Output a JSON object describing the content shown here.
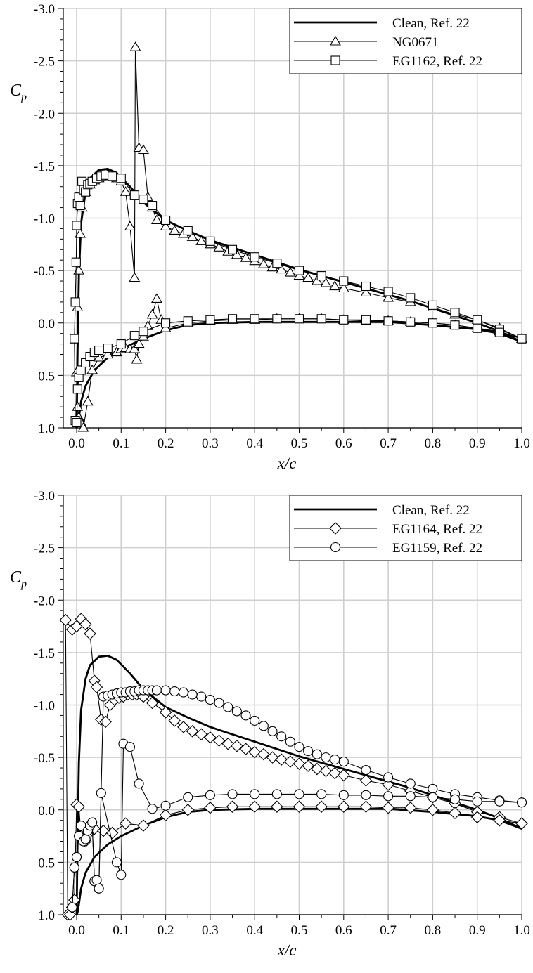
{
  "chart_data": [
    {
      "type": "line",
      "xlabel": "x/c",
      "ylabel": "C",
      "ylabel_sub": "p",
      "xlim": [
        -0.03,
        1.0
      ],
      "ylim": [
        1.0,
        -3.0
      ],
      "y_axis_inverted": true,
      "xticks": [
        "0.0",
        "0.1",
        "0.2",
        "0.3",
        "0.4",
        "0.5",
        "0.6",
        "0.7",
        "0.8",
        "0.9",
        "1.0"
      ],
      "xtick_values": [
        0.0,
        0.1,
        0.2,
        0.3,
        0.4,
        0.5,
        0.6,
        0.7,
        0.8,
        0.9,
        1.0
      ],
      "yticks": [
        "-3.0",
        "-2.5",
        "-2.0",
        "-1.5",
        "-1.0",
        "-0.5",
        "0.0",
        "0.5",
        "1.0"
      ],
      "ytick_values": [
        -3.0,
        -2.5,
        -2.0,
        -1.5,
        -1.0,
        -0.5,
        0.0,
        0.5,
        1.0
      ],
      "grid": true,
      "legend_position": "top-right",
      "series": [
        {
          "name": "Clean, Ref. 22",
          "marker": "none",
          "line": "thick",
          "x": [
            0.0,
            0.002,
            0.005,
            0.01,
            0.02,
            0.03,
            0.05,
            0.07,
            0.09,
            0.12,
            0.15,
            0.2,
            0.25,
            0.3,
            0.35,
            0.4,
            0.45,
            0.5,
            0.55,
            0.6,
            0.65,
            0.7,
            0.75,
            0.8,
            0.85,
            0.9,
            0.95,
            1.0,
            null,
            0.0,
            0.002,
            0.005,
            0.01,
            0.02,
            0.04,
            0.07,
            0.1,
            0.15,
            0.2,
            0.25,
            0.3,
            0.4,
            0.5,
            0.6,
            0.7,
            0.8,
            0.9,
            0.95,
            1.0
          ],
          "y": [
            1.0,
            0.3,
            -0.45,
            -0.95,
            -1.25,
            -1.38,
            -1.46,
            -1.47,
            -1.43,
            -1.3,
            -1.15,
            -0.98,
            -0.88,
            -0.79,
            -0.72,
            -0.65,
            -0.58,
            -0.51,
            -0.45,
            -0.39,
            -0.33,
            -0.27,
            -0.21,
            -0.14,
            -0.07,
            0.0,
            0.08,
            0.18,
            null,
            1.0,
            0.98,
            0.9,
            0.75,
            0.6,
            0.45,
            0.33,
            0.25,
            0.15,
            0.07,
            0.02,
            0.0,
            -0.01,
            -0.01,
            -0.01,
            -0.01,
            0.02,
            0.06,
            0.1,
            0.18
          ]
        },
        {
          "name": "NG0671",
          "marker": "triangle",
          "x": [
            0.0,
            0.002,
            0.005,
            0.008,
            0.012,
            0.02,
            0.03,
            0.04,
            0.05,
            0.06,
            0.07,
            0.08,
            0.09,
            0.1,
            0.11,
            0.12,
            0.13,
            0.132,
            0.14,
            0.15,
            0.16,
            0.17,
            0.18,
            0.2,
            0.22,
            0.24,
            0.26,
            0.28,
            0.3,
            0.32,
            0.34,
            0.36,
            0.38,
            0.4,
            0.42,
            0.44,
            0.46,
            0.48,
            0.5,
            0.52,
            0.54,
            0.56,
            0.58,
            0.6,
            0.65,
            0.7,
            0.75,
            0.8,
            0.85,
            0.9,
            0.95,
            1.0,
            null,
            0.0,
            0.002,
            0.005,
            0.01,
            0.015,
            0.025,
            0.035,
            0.05,
            0.07,
            0.09,
            0.1,
            0.11,
            0.12,
            0.13,
            0.135,
            0.14,
            0.15,
            0.16,
            0.17,
            0.18,
            0.19,
            0.2,
            0.25,
            0.3,
            0.35,
            0.4,
            0.45,
            0.5,
            0.55,
            0.6,
            0.65,
            0.7,
            0.75,
            0.8,
            0.85,
            0.9,
            0.95,
            1.0
          ],
          "y": [
            0.47,
            -0.15,
            -0.5,
            -0.85,
            -1.1,
            -1.25,
            -1.32,
            -1.36,
            -1.38,
            -1.4,
            -1.42,
            -1.4,
            -1.38,
            -1.35,
            -1.25,
            -0.92,
            -0.43,
            -2.63,
            -1.67,
            -1.65,
            -1.2,
            -1.1,
            -0.98,
            -0.92,
            -0.88,
            -0.85,
            -0.82,
            -0.78,
            -0.75,
            -0.72,
            -0.68,
            -0.65,
            -0.62,
            -0.59,
            -0.56,
            -0.53,
            -0.51,
            -0.48,
            -0.45,
            -0.43,
            -0.4,
            -0.38,
            -0.35,
            -0.33,
            -0.29,
            -0.24,
            -0.2,
            -0.15,
            -0.08,
            -0.03,
            0.05,
            0.15,
            null,
            0.47,
            0.8,
            0.9,
            0.95,
            1.0,
            0.75,
            0.45,
            0.33,
            0.3,
            0.28,
            0.25,
            0.24,
            0.25,
            0.25,
            0.35,
            0.2,
            0.13,
            0.03,
            -0.08,
            -0.23,
            -0.03,
            0.05,
            0.0,
            -0.02,
            -0.03,
            -0.03,
            -0.04,
            -0.04,
            -0.04,
            -0.03,
            -0.02,
            -0.02,
            -0.01,
            0.0,
            0.02,
            0.05,
            0.08,
            0.15
          ]
        },
        {
          "name": "EG1162, Ref. 22",
          "marker": "square",
          "x": [
            -0.005,
            -0.003,
            -0.001,
            0.0,
            0.002,
            0.005,
            0.008,
            0.012,
            0.016,
            0.02,
            0.025,
            0.03,
            0.035,
            0.045,
            0.055,
            0.065,
            0.08,
            0.1,
            0.13,
            0.15,
            0.17,
            0.2,
            0.25,
            0.3,
            0.35,
            0.4,
            0.45,
            0.5,
            0.55,
            0.6,
            0.65,
            0.7,
            0.75,
            0.8,
            0.85,
            0.9,
            0.95,
            1.0,
            null,
            -0.005,
            -0.003,
            0.0,
            0.002,
            0.005,
            0.01,
            0.02,
            0.03,
            0.04,
            0.05,
            0.07,
            0.1,
            0.13,
            0.15,
            0.2,
            0.25,
            0.3,
            0.35,
            0.4,
            0.45,
            0.5,
            0.55,
            0.6,
            0.65,
            0.7,
            0.75,
            0.8,
            0.85,
            0.9,
            0.95,
            1.0
          ],
          "y": [
            0.15,
            -0.2,
            -0.58,
            -0.93,
            -1.14,
            -1.2,
            -1.12,
            -1.35,
            -1.27,
            -1.25,
            -1.32,
            -1.33,
            -1.35,
            -1.38,
            -1.4,
            -1.41,
            -1.4,
            -1.38,
            -1.22,
            -1.18,
            -1.12,
            -0.98,
            -0.88,
            -0.78,
            -0.7,
            -0.63,
            -0.57,
            -0.5,
            -0.45,
            -0.4,
            -0.35,
            -0.3,
            -0.24,
            -0.17,
            -0.1,
            -0.03,
            0.06,
            0.15,
            null,
            0.15,
            0.93,
            0.95,
            0.63,
            0.52,
            0.45,
            0.38,
            0.32,
            0.28,
            0.26,
            0.24,
            0.2,
            0.12,
            0.08,
            0.0,
            -0.02,
            -0.03,
            -0.04,
            -0.04,
            -0.04,
            -0.04,
            -0.04,
            -0.03,
            -0.03,
            -0.02,
            -0.01,
            0.0,
            0.02,
            0.05,
            0.09,
            0.15
          ]
        }
      ]
    },
    {
      "type": "line",
      "xlabel": "x/c",
      "ylabel": "C",
      "ylabel_sub": "p",
      "xlim": [
        -0.03,
        1.0
      ],
      "ylim": [
        1.0,
        -3.0
      ],
      "y_axis_inverted": true,
      "xticks": [
        "0.0",
        "0.1",
        "0.2",
        "0.3",
        "0.4",
        "0.5",
        "0.6",
        "0.7",
        "0.8",
        "0.9",
        "1.0"
      ],
      "xtick_values": [
        0.0,
        0.1,
        0.2,
        0.3,
        0.4,
        0.5,
        0.6,
        0.7,
        0.8,
        0.9,
        1.0
      ],
      "yticks": [
        "-3.0",
        "-2.5",
        "-2.0",
        "-1.5",
        "-1.0",
        "-0.5",
        "0.0",
        "0.5",
        "1.0"
      ],
      "ytick_values": [
        -3.0,
        -2.5,
        -2.0,
        -1.5,
        -1.0,
        -0.5,
        0.0,
        0.5,
        1.0
      ],
      "grid": true,
      "legend_position": "top-right",
      "series": [
        {
          "name": "Clean, Ref. 22",
          "marker": "none",
          "line": "thick",
          "x": [
            0.0,
            0.002,
            0.005,
            0.01,
            0.02,
            0.03,
            0.05,
            0.07,
            0.09,
            0.12,
            0.15,
            0.2,
            0.25,
            0.3,
            0.35,
            0.4,
            0.45,
            0.5,
            0.55,
            0.6,
            0.65,
            0.7,
            0.75,
            0.8,
            0.85,
            0.9,
            0.95,
            1.0,
            null,
            0.0,
            0.002,
            0.005,
            0.01,
            0.02,
            0.04,
            0.07,
            0.1,
            0.15,
            0.2,
            0.25,
            0.3,
            0.4,
            0.5,
            0.6,
            0.7,
            0.8,
            0.9,
            0.95,
            1.0
          ],
          "y": [
            1.0,
            0.3,
            -0.45,
            -0.95,
            -1.25,
            -1.38,
            -1.46,
            -1.47,
            -1.43,
            -1.3,
            -1.15,
            -0.98,
            -0.88,
            -0.79,
            -0.72,
            -0.65,
            -0.58,
            -0.51,
            -0.45,
            -0.39,
            -0.33,
            -0.27,
            -0.21,
            -0.14,
            -0.07,
            0.0,
            0.08,
            0.18,
            null,
            1.0,
            0.98,
            0.9,
            0.75,
            0.6,
            0.45,
            0.33,
            0.25,
            0.15,
            0.07,
            0.02,
            0.0,
            -0.01,
            -0.01,
            -0.01,
            -0.01,
            0.02,
            0.06,
            0.1,
            0.18
          ]
        },
        {
          "name": "EG1164, Ref. 22",
          "marker": "diamond",
          "x": [
            -0.025,
            -0.01,
            0.0,
            0.01,
            0.02,
            0.03,
            0.04,
            0.045,
            0.055,
            0.065,
            0.075,
            0.085,
            0.095,
            0.105,
            0.115,
            0.125,
            0.135,
            0.15,
            0.17,
            0.2,
            0.22,
            0.24,
            0.26,
            0.28,
            0.3,
            0.32,
            0.34,
            0.36,
            0.38,
            0.4,
            0.42,
            0.44,
            0.46,
            0.48,
            0.5,
            0.52,
            0.54,
            0.56,
            0.58,
            0.6,
            0.65,
            0.7,
            0.75,
            0.8,
            0.85,
            0.9,
            0.95,
            1.0,
            null,
            -0.025,
            -0.02,
            -0.015,
            -0.01,
            -0.005,
            0.0,
            0.005,
            0.01,
            0.015,
            0.02,
            0.03,
            0.04,
            0.06,
            0.08,
            0.11,
            0.15,
            0.2,
            0.25,
            0.3,
            0.35,
            0.4,
            0.45,
            0.5,
            0.55,
            0.6,
            0.65,
            0.7,
            0.75,
            0.8,
            0.85,
            0.9,
            0.95,
            1.0
          ],
          "y": [
            -1.81,
            -1.72,
            -1.75,
            -1.82,
            -1.77,
            -1.68,
            -1.23,
            -1.17,
            -0.86,
            -0.84,
            -1.0,
            -1.05,
            -1.07,
            -1.08,
            -1.1,
            -1.1,
            -1.1,
            -1.08,
            -1.02,
            -0.93,
            -0.85,
            -0.79,
            -0.75,
            -0.72,
            -0.69,
            -0.66,
            -0.63,
            -0.61,
            -0.58,
            -0.55,
            -0.53,
            -0.5,
            -0.48,
            -0.46,
            -0.44,
            -0.42,
            -0.39,
            -0.37,
            -0.35,
            -0.33,
            -0.28,
            -0.24,
            -0.18,
            -0.12,
            -0.06,
            0.02,
            0.07,
            0.13,
            null,
            -1.81,
            1.0,
            1.0,
            0.93,
            0.86,
            -0.05,
            -0.03,
            0.25,
            0.28,
            0.3,
            0.21,
            0.18,
            0.2,
            0.22,
            0.13,
            0.15,
            0.05,
            0.0,
            -0.02,
            -0.03,
            -0.03,
            -0.03,
            -0.03,
            -0.03,
            -0.03,
            -0.03,
            -0.02,
            -0.02,
            0.0,
            0.03,
            0.07,
            0.1,
            0.13
          ]
        },
        {
          "name": "EG1159, Ref. 22",
          "marker": "circle",
          "x": [
            -0.01,
            -0.005,
            0.0,
            0.005,
            0.01,
            0.015,
            0.02,
            0.025,
            0.03,
            0.035,
            0.04,
            0.045,
            0.05,
            0.06,
            0.07,
            0.08,
            0.09,
            0.1,
            0.11,
            0.12,
            0.13,
            0.14,
            0.15,
            0.16,
            0.17,
            0.18,
            0.2,
            0.22,
            0.24,
            0.26,
            0.28,
            0.3,
            0.32,
            0.34,
            0.36,
            0.38,
            0.4,
            0.42,
            0.44,
            0.46,
            0.48,
            0.5,
            0.52,
            0.54,
            0.56,
            0.58,
            0.6,
            0.65,
            0.7,
            0.75,
            0.8,
            0.85,
            0.9,
            0.95,
            1.0,
            null,
            -0.01,
            -0.005,
            0.0,
            0.005,
            0.01,
            0.015,
            0.02,
            0.025,
            0.03,
            0.035,
            0.04,
            0.045,
            0.05,
            0.055,
            0.09,
            0.1,
            0.105,
            0.12,
            0.14,
            0.17,
            0.2,
            0.25,
            0.3,
            0.35,
            0.4,
            0.45,
            0.5,
            0.55,
            0.6,
            0.65,
            0.7,
            0.75,
            0.8,
            0.85,
            0.9,
            0.95,
            1.0
          ],
          "y": [
            0.93,
            0.55,
            0.45,
            0.25,
            0.15,
            0.3,
            0.28,
            0.2,
            0.15,
            0.12,
            0.68,
            0.67,
            0.75,
            -1.08,
            -1.09,
            -1.1,
            -1.11,
            -1.12,
            -1.12,
            -1.13,
            -1.13,
            -1.14,
            -1.14,
            -1.14,
            -1.14,
            -1.14,
            -1.14,
            -1.13,
            -1.12,
            -1.1,
            -1.08,
            -1.05,
            -1.02,
            -0.98,
            -0.94,
            -0.9,
            -0.85,
            -0.8,
            -0.75,
            -0.7,
            -0.65,
            -0.6,
            -0.56,
            -0.53,
            -0.5,
            -0.48,
            -0.46,
            -0.38,
            -0.31,
            -0.25,
            -0.2,
            -0.15,
            -0.12,
            -0.09,
            -0.07,
            null,
            0.93,
            0.55,
            0.45,
            0.25,
            0.15,
            0.3,
            0.28,
            0.2,
            0.15,
            0.12,
            0.68,
            0.67,
            0.75,
            -0.16,
            0.5,
            0.62,
            -0.63,
            -0.6,
            -0.25,
            -0.01,
            -0.04,
            -0.12,
            -0.14,
            -0.15,
            -0.15,
            -0.15,
            -0.15,
            -0.15,
            -0.14,
            -0.14,
            -0.13,
            -0.13,
            -0.12,
            -0.1,
            -0.08,
            -0.08,
            -0.07
          ]
        }
      ]
    }
  ]
}
